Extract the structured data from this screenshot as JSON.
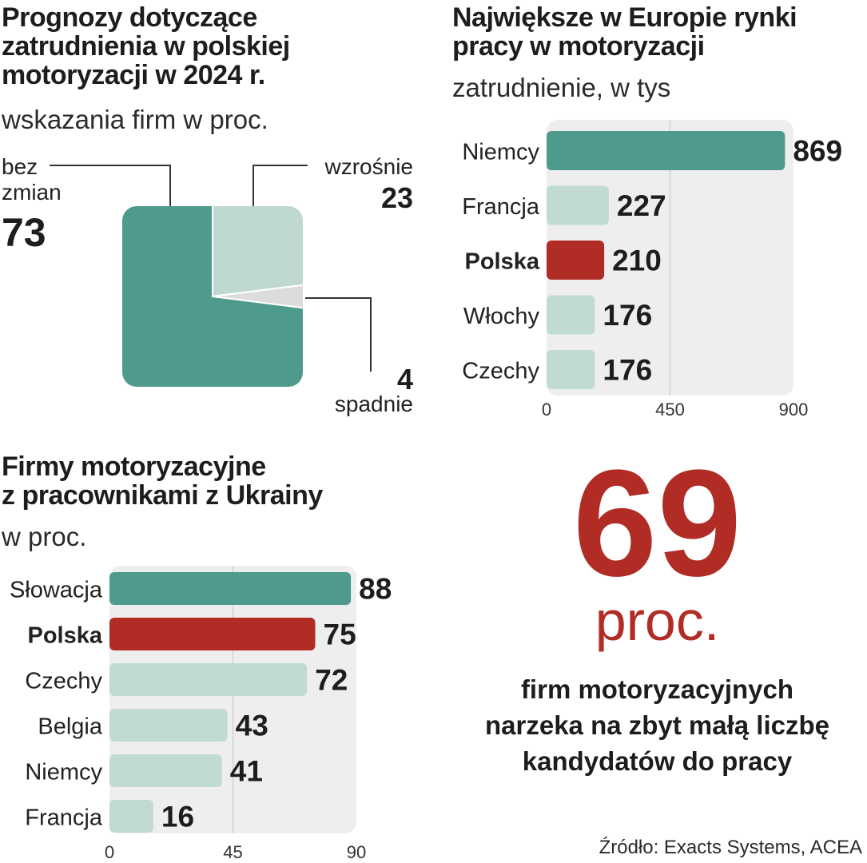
{
  "chart_data": [
    {
      "type": "pie",
      "title": "Prognozy dotyczące zatrudnienia w polskiej motoryzacji w 2024 r.",
      "subtitle": "wskazania firm w proc.",
      "slices": [
        {
          "label_lines": [
            "bez",
            "zmian"
          ],
          "value": 73,
          "color": "#4e9b8d"
        },
        {
          "label_lines": [
            "wzrośnie"
          ],
          "value": 23,
          "color": "#bfd9d2"
        },
        {
          "label_lines": [
            "spadnie"
          ],
          "value": 4,
          "color": "#dcdcdc"
        }
      ]
    },
    {
      "type": "bar",
      "orientation": "horizontal",
      "title": "Największe w Europie rynki pracy w motoryzacji",
      "subtitle": "zatrudnienie, w tys",
      "categories": [
        "Niemcy",
        "Francja",
        "Polska",
        "Włochy",
        "Czechy"
      ],
      "values": [
        869,
        227,
        210,
        176,
        176
      ],
      "colors": [
        "#4e9b8d",
        "#c1dbd4",
        "#b02c25",
        "#c1dbd4",
        "#c1dbd4"
      ],
      "highlight": "Polska",
      "xlim": [
        0,
        900
      ],
      "ticks": [
        0,
        450,
        900
      ]
    },
    {
      "type": "bar",
      "orientation": "horizontal",
      "title": "Firmy motoryzacyjne z pracownikami z Ukrainy",
      "subtitle": "w proc.",
      "categories": [
        "Słowacja",
        "Polska",
        "Czechy",
        "Belgia",
        "Niemcy",
        "Francja"
      ],
      "values": [
        88,
        75,
        72,
        43,
        41,
        16
      ],
      "colors": [
        "#4e9b8d",
        "#b02c25",
        "#c1dbd4",
        "#c1dbd4",
        "#c1dbd4",
        "#c1dbd4"
      ],
      "highlight": "Polska",
      "xlim": [
        0,
        90
      ],
      "ticks": [
        0,
        45,
        90
      ]
    }
  ],
  "pie": {
    "title_lines": [
      "Prognozy dotyczące",
      "zatrudnienia w polskiej",
      "motoryzacji w 2024 r."
    ],
    "subtitle": "wskazania firm w proc.",
    "labels": {
      "unchanged_line1": "bez",
      "unchanged_line2": "zmian",
      "unchanged_value": "73",
      "up_label": "wzrośnie",
      "up_value": "23",
      "down_label": "spadnie",
      "down_value": "4"
    }
  },
  "chart2": {
    "title_lines": [
      "Największe w Europie rynki",
      "pracy w motoryzacji"
    ],
    "subtitle": "zatrudnienie, w tys"
  },
  "chart3": {
    "title_lines": [
      "Firmy motoryzacyjne",
      "z pracownikami z Ukrainy"
    ],
    "subtitle": "w proc."
  },
  "highlight": {
    "number": "69",
    "unit": "proc.",
    "desc_lines": [
      "firm motoryzacyjnych",
      "narzeka na zbyt małą liczbę",
      "kandydatów do pracy"
    ]
  },
  "source": "Źródło: Exacts Systems, ACEA",
  "colors": {
    "teal": "#4e9b8d",
    "light_teal": "#c1dbd4",
    "red": "#b02c25",
    "panel_bg": "#eeeeee"
  }
}
